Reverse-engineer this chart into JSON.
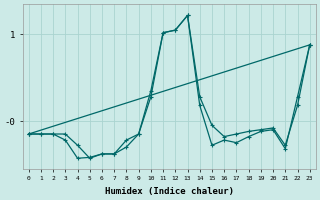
{
  "xlabel": "Humidex (Indice chaleur)",
  "background_color": "#cceae7",
  "grid_color": "#aad4d0",
  "line_color": "#006868",
  "xlim": [
    -0.5,
    23.5
  ],
  "ylim": [
    -0.55,
    1.35
  ],
  "series1_x": [
    0,
    1,
    2,
    3,
    4,
    5,
    6,
    7,
    8,
    9,
    10,
    11,
    12,
    13,
    14,
    15,
    16,
    17,
    18,
    19,
    20,
    21,
    22,
    23
  ],
  "series1_y": [
    -0.15,
    -0.15,
    -0.15,
    -0.15,
    -0.28,
    -0.43,
    -0.38,
    -0.38,
    -0.3,
    -0.15,
    0.28,
    1.02,
    1.05,
    1.22,
    0.28,
    -0.05,
    -0.18,
    -0.15,
    -0.12,
    -0.1,
    -0.08,
    -0.28,
    0.18,
    0.88
  ],
  "series2_x": [
    0,
    1,
    2,
    3,
    4,
    5,
    6,
    7,
    8,
    9,
    10,
    11,
    12,
    13,
    14,
    15,
    16,
    17,
    18,
    19,
    20,
    21,
    22,
    23
  ],
  "series2_y": [
    -0.15,
    -0.15,
    -0.15,
    -0.22,
    -0.43,
    -0.42,
    -0.38,
    -0.38,
    -0.22,
    -0.15,
    0.35,
    1.02,
    1.05,
    1.22,
    0.18,
    -0.28,
    -0.22,
    -0.25,
    -0.18,
    -0.12,
    -0.1,
    -0.32,
    0.28,
    0.88
  ],
  "series3_x": [
    0,
    23
  ],
  "series3_y": [
    -0.15,
    0.88
  ],
  "xtick_labels": [
    "0",
    "1",
    "2",
    "3",
    "4",
    "5",
    "6",
    "7",
    "8",
    "9",
    "10",
    "11",
    "12",
    "13",
    "14",
    "15",
    "16",
    "17",
    "18",
    "19",
    "20",
    "21",
    "22",
    "23"
  ]
}
